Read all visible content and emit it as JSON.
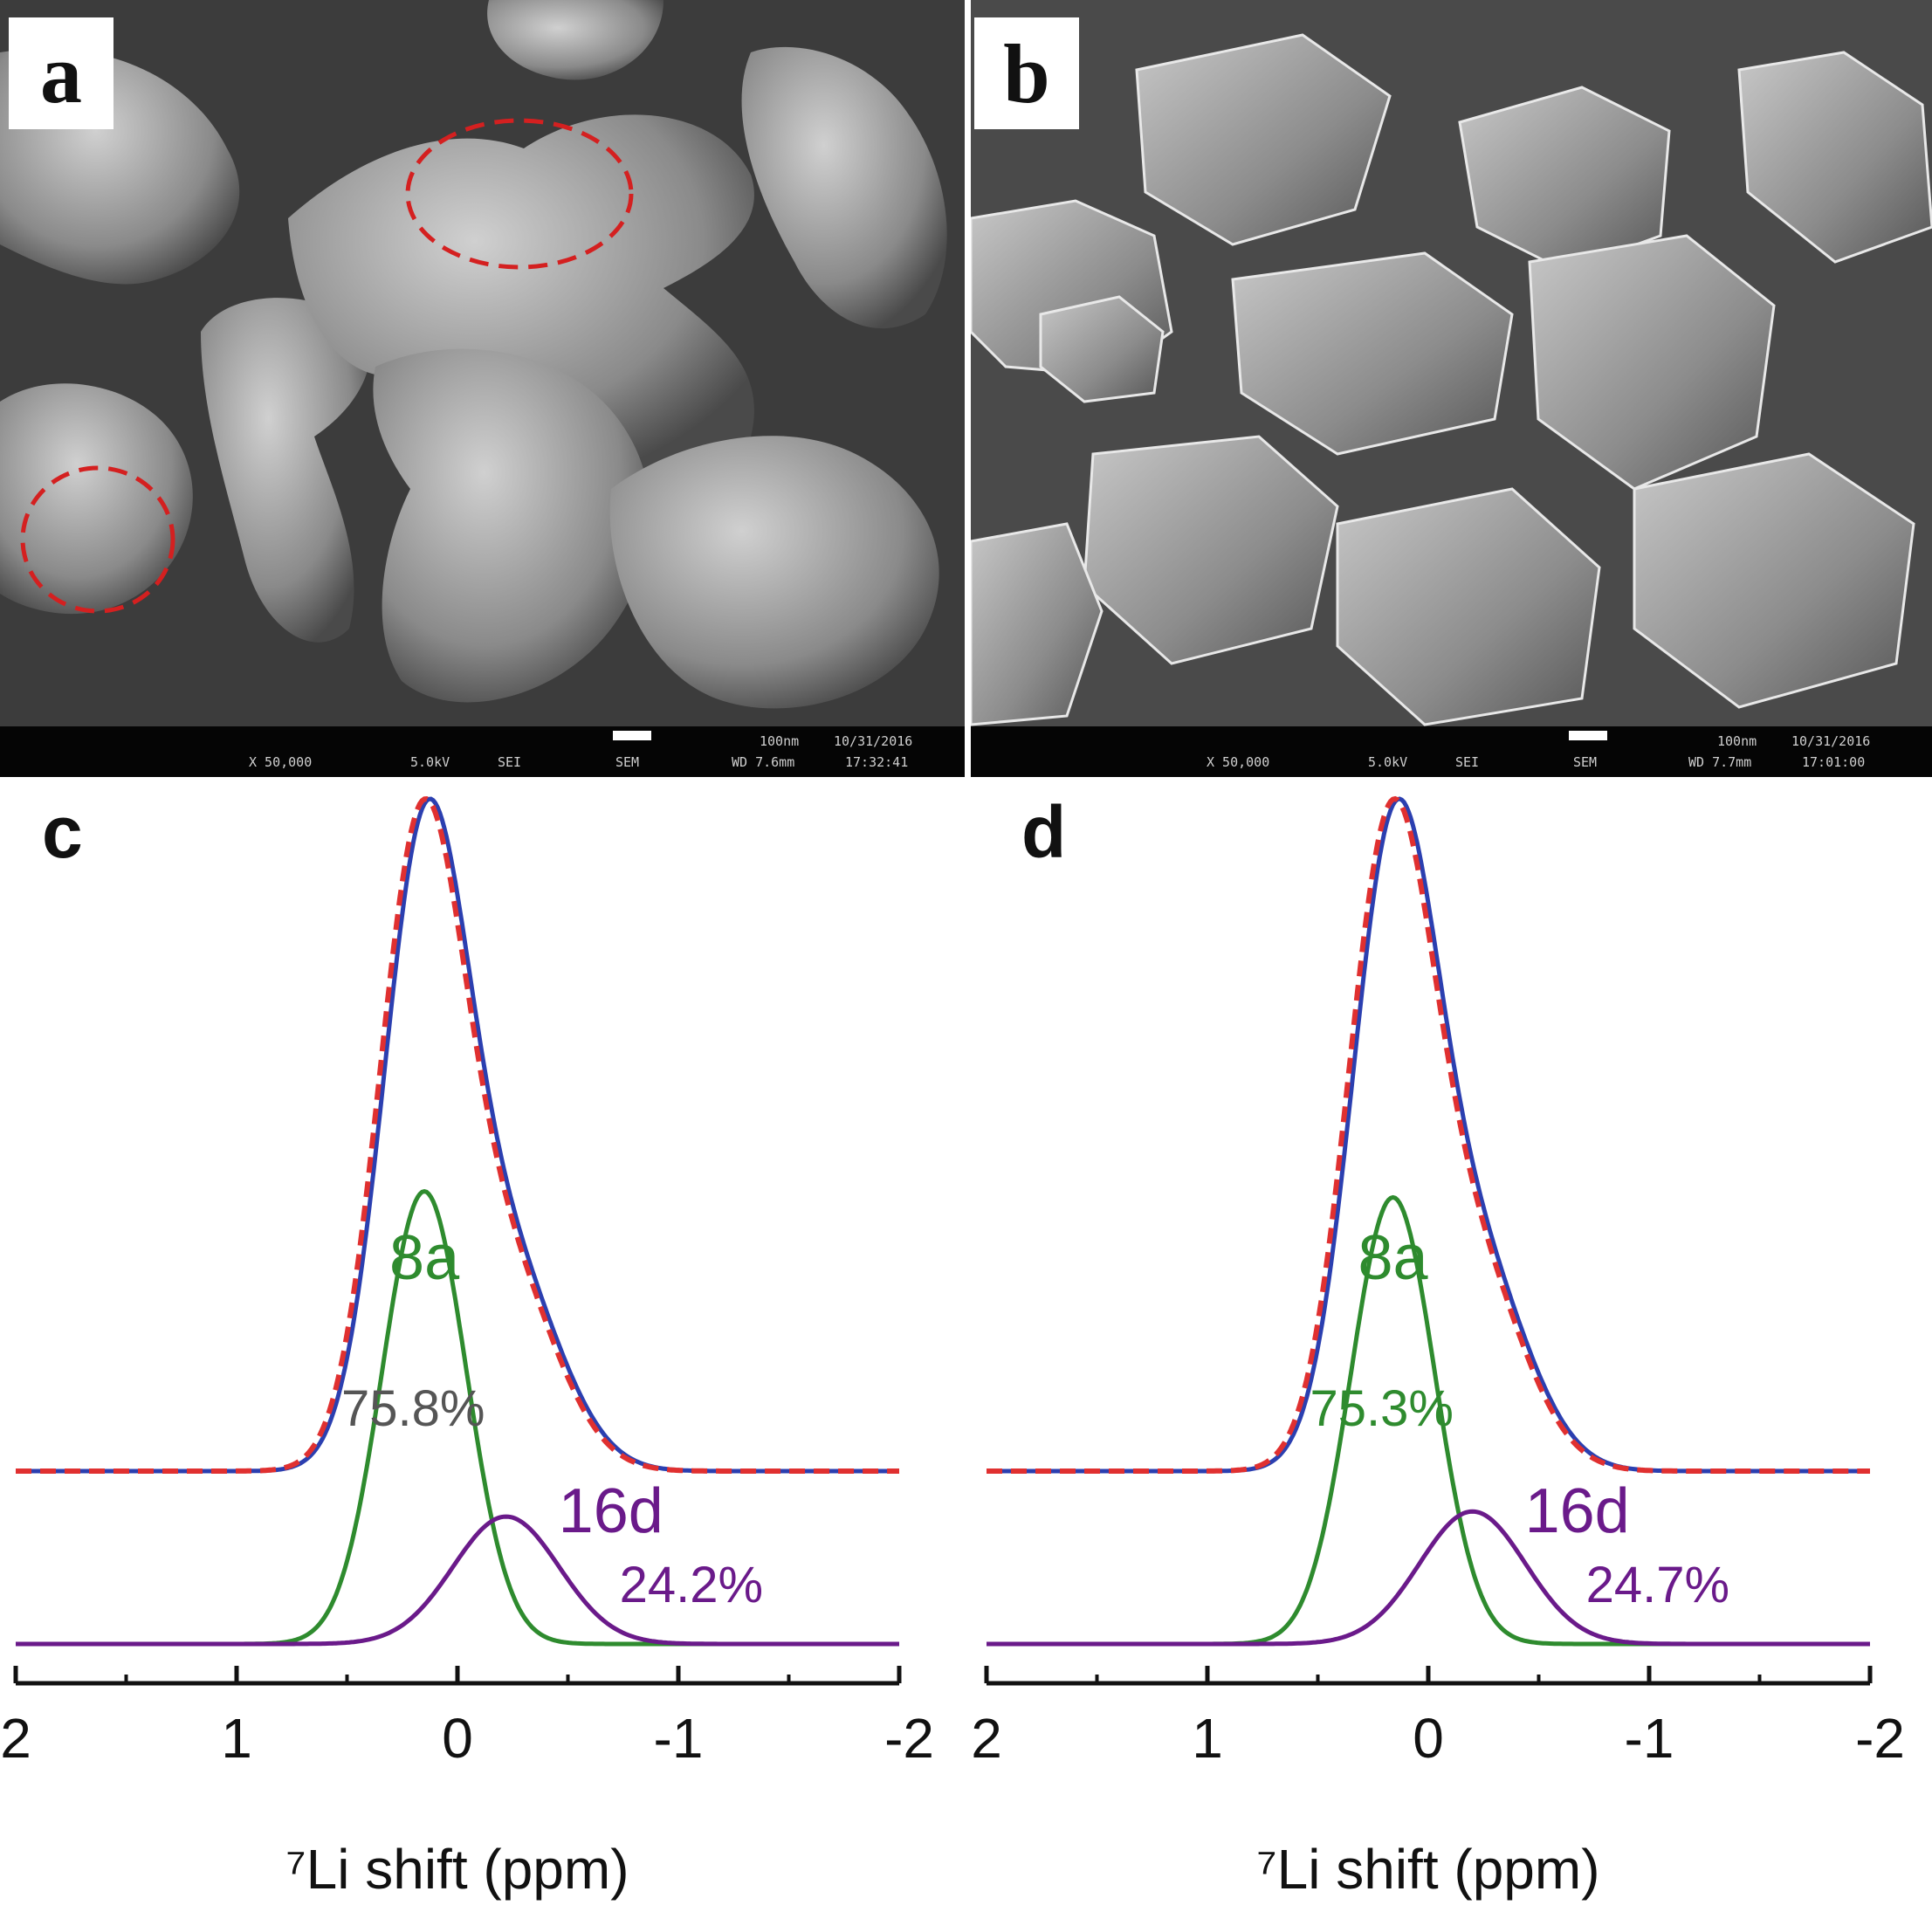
{
  "panels": {
    "a": {
      "label": "a",
      "infobar": {
        "mag": "X 50,000",
        "kv": "5.0kV",
        "det": "SEI",
        "unit": "SEM",
        "scale": "100nm",
        "date": "10/31/2016",
        "wd": "WD 7.6mm",
        "time": "17:32:41"
      }
    },
    "b": {
      "label": "b",
      "infobar": {
        "mag": "X 50,000",
        "kv": "5.0kV",
        "det": "SEI",
        "unit": "SEM",
        "scale": "100nm",
        "date": "10/31/2016",
        "wd": "WD 7.7mm",
        "time": "17:01:00"
      }
    },
    "c": {
      "label": "c"
    },
    "d": {
      "label": "d"
    }
  },
  "annotation_color": "#d42020",
  "chart_data": [
    {
      "panel": "c",
      "type": "line",
      "xlabel": "⁷Li shift (ppm)",
      "xlim": [
        2,
        -2
      ],
      "xticks": [
        "2",
        "1",
        "0",
        "-1",
        "-2"
      ],
      "series": [
        {
          "color": "#2b3fb0",
          "style": "solid",
          "peak_ppm": 0.15,
          "height": 1.0
        },
        {
          "color": "#e03030",
          "style": "dashed",
          "peak_ppm": 0.13,
          "height": 1.0
        },
        {
          "name": "8a",
          "color": "#2e8b2e",
          "style": "solid",
          "peak_ppm": 0.15,
          "height": 0.75,
          "fraction": "75.8%"
        },
        {
          "name": "16d",
          "color": "#6a1a8a",
          "style": "solid",
          "peak_ppm": -0.22,
          "height": 0.25,
          "fraction": "24.2%"
        }
      ]
    },
    {
      "panel": "d",
      "type": "line",
      "xlabel": "⁷Li shift (ppm)",
      "xlim": [
        2,
        -2
      ],
      "xticks": [
        "2",
        "1",
        "0",
        "-1",
        "-2"
      ],
      "series": [
        {
          "color": "#2b3fb0",
          "style": "solid",
          "peak_ppm": 0.15,
          "height": 1.0
        },
        {
          "color": "#e03030",
          "style": "dashed",
          "peak_ppm": 0.13,
          "height": 1.0
        },
        {
          "name": "8a",
          "color": "#2e8b2e",
          "style": "solid",
          "peak_ppm": 0.16,
          "height": 0.74,
          "fraction": "75.3%"
        },
        {
          "name": "16d",
          "color": "#6a1a8a",
          "style": "solid",
          "peak_ppm": -0.2,
          "height": 0.26,
          "fraction": "24.7%"
        }
      ]
    }
  ]
}
